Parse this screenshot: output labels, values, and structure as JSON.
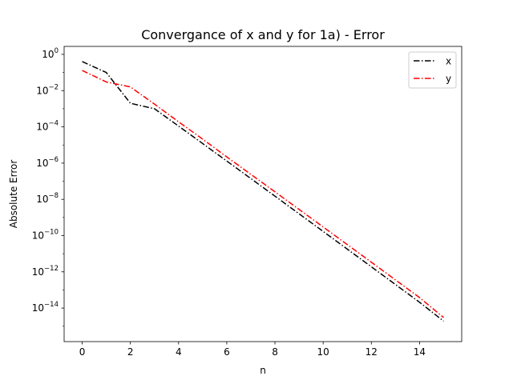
{
  "chart_data": {
    "type": "line",
    "title": "Convergance of x and y for 1a) - Error",
    "xlabel": "n",
    "ylabel": "Absolute Error",
    "yscale": "log",
    "xlim": [
      -0.75,
      15.75
    ],
    "ylim_exponent": [
      -15.85,
      0.44
    ],
    "x_ticks": [
      0,
      2,
      4,
      6,
      8,
      10,
      12,
      14
    ],
    "x_tick_labels": [
      "0",
      "2",
      "4",
      "6",
      "8",
      "10",
      "12",
      "14"
    ],
    "y_ticks_exponent": [
      0,
      -2,
      -4,
      -6,
      -8,
      -10,
      -12,
      -14
    ],
    "y_tick_labels": [
      "10^0",
      "10^-2",
      "10^-4",
      "10^-6",
      "10^-8",
      "10^-10",
      "10^-12",
      "10^-14"
    ],
    "grid": false,
    "legend_position": "upper right",
    "x": [
      0,
      1,
      2,
      3,
      4,
      5,
      6,
      7,
      8,
      9,
      10,
      11,
      12,
      13,
      14,
      15
    ],
    "series": [
      {
        "name": "x",
        "color": "#000000",
        "linestyle": "dash-dot",
        "values": [
          0.4,
          0.1,
          0.002,
          0.001,
          0.00011,
          1.2e-05,
          1.3e-06,
          1.4e-07,
          1.5e-08,
          1.6e-09,
          1.7e-10,
          1.8e-11,
          1.9e-12,
          2e-13,
          2.1e-14,
          1.9e-15
        ]
      },
      {
        "name": "y",
        "color": "#ff0000",
        "linestyle": "dash-dot",
        "values": [
          0.13,
          0.03,
          0.016,
          0.0018,
          0.00019,
          2.1e-05,
          2.2e-06,
          2.4e-07,
          2.6e-08,
          2.8e-09,
          3e-10,
          3.2e-11,
          3.4e-12,
          3.6e-13,
          3.8e-14,
          3e-15
        ]
      }
    ]
  }
}
